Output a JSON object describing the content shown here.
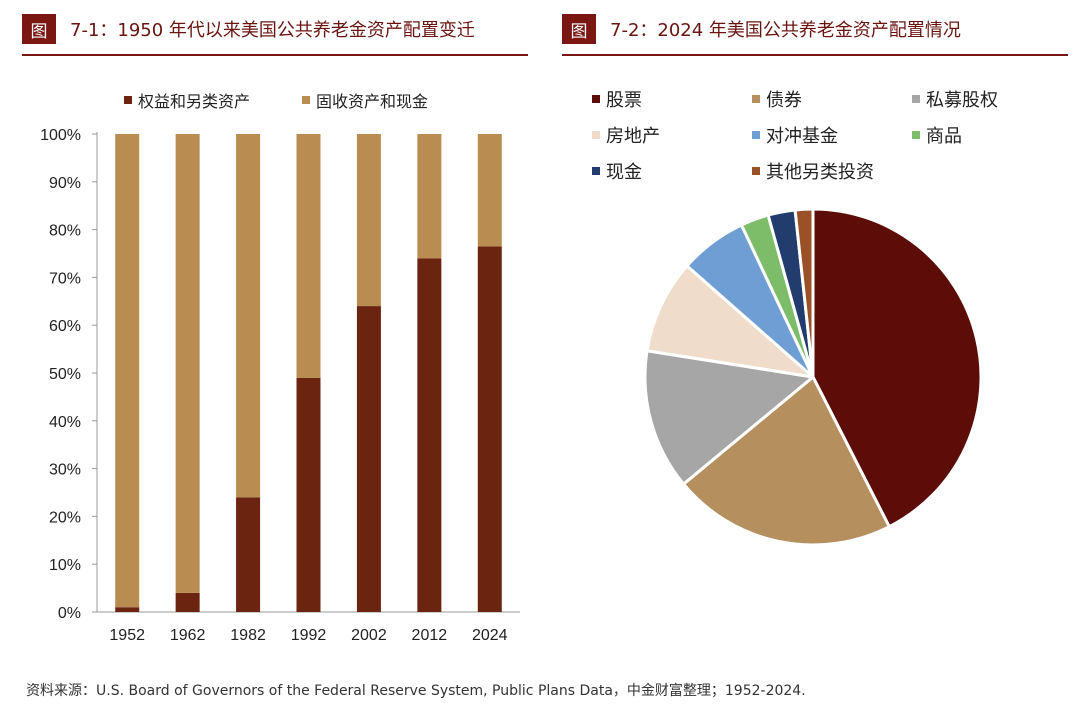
{
  "header_left": {
    "tag": "图",
    "title": "7-1：1950 年代以来美国公共养老金资产配置变迁"
  },
  "header_right": {
    "tag": "图",
    "title": "7-2：2024 年美国公共养老金资产配置情况"
  },
  "chart_data": [
    {
      "type": "bar",
      "stacked": true,
      "categories": [
        "1952",
        "1962",
        "1982",
        "1992",
        "2002",
        "2012",
        "2024"
      ],
      "series": [
        {
          "name": "权益和另类资产",
          "color": "#6b2410",
          "values": [
            1,
            4,
            24,
            49,
            64,
            74,
            76.5
          ]
        },
        {
          "name": "固收资产和现金",
          "color": "#b98d52",
          "values": [
            99,
            96,
            76,
            51,
            36,
            26,
            23.5
          ]
        }
      ],
      "ylim": [
        0,
        100
      ],
      "yticks": [
        "0%",
        "10%",
        "20%",
        "30%",
        "40%",
        "50%",
        "60%",
        "70%",
        "80%",
        "90%",
        "100%"
      ],
      "legend": "top"
    },
    {
      "type": "pie",
      "slices": [
        {
          "label": "股票",
          "value": 42.5,
          "color": "#5c0d08"
        },
        {
          "label": "债券",
          "value": 21.5,
          "color": "#b5905e"
        },
        {
          "label": "私募股权",
          "value": 13.5,
          "color": "#a6a6a6"
        },
        {
          "label": "房地产",
          "value": 9.0,
          "color": "#f0dccb"
        },
        {
          "label": "对冲基金",
          "value": 6.5,
          "color": "#6f9ed4"
        },
        {
          "label": "商品",
          "value": 2.7,
          "color": "#7dbd6a"
        },
        {
          "label": "现金",
          "value": 2.6,
          "color": "#223c6e"
        },
        {
          "label": "其他另类投资",
          "value": 1.7,
          "color": "#9a5128"
        }
      ],
      "legend": "top"
    }
  ],
  "footnote": "资料来源：U.S. Board of Governors of the Federal Reserve System, Public Plans Data，中金财富整理；1952-2024."
}
